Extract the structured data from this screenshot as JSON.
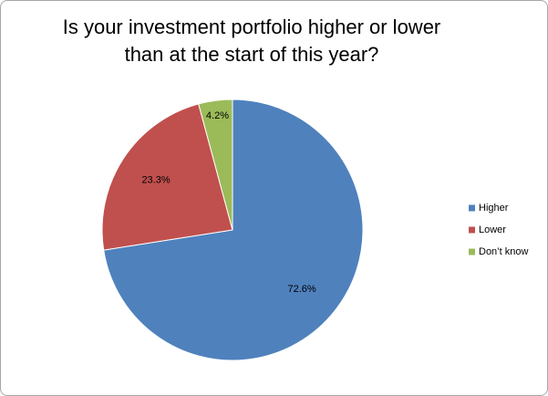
{
  "chart_data": {
    "type": "pie",
    "title": "Is your investment portfolio higher or lower than at the start of this year?",
    "categories": [
      "Higher",
      "Lower",
      "Don’t know"
    ],
    "values": [
      72.6,
      23.3,
      4.2
    ],
    "value_labels": [
      "72.6%",
      "23.3%",
      "4.2%"
    ],
    "colors": [
      "#4f81bd",
      "#c0504d",
      "#9bbb59"
    ],
    "legend": "right"
  }
}
